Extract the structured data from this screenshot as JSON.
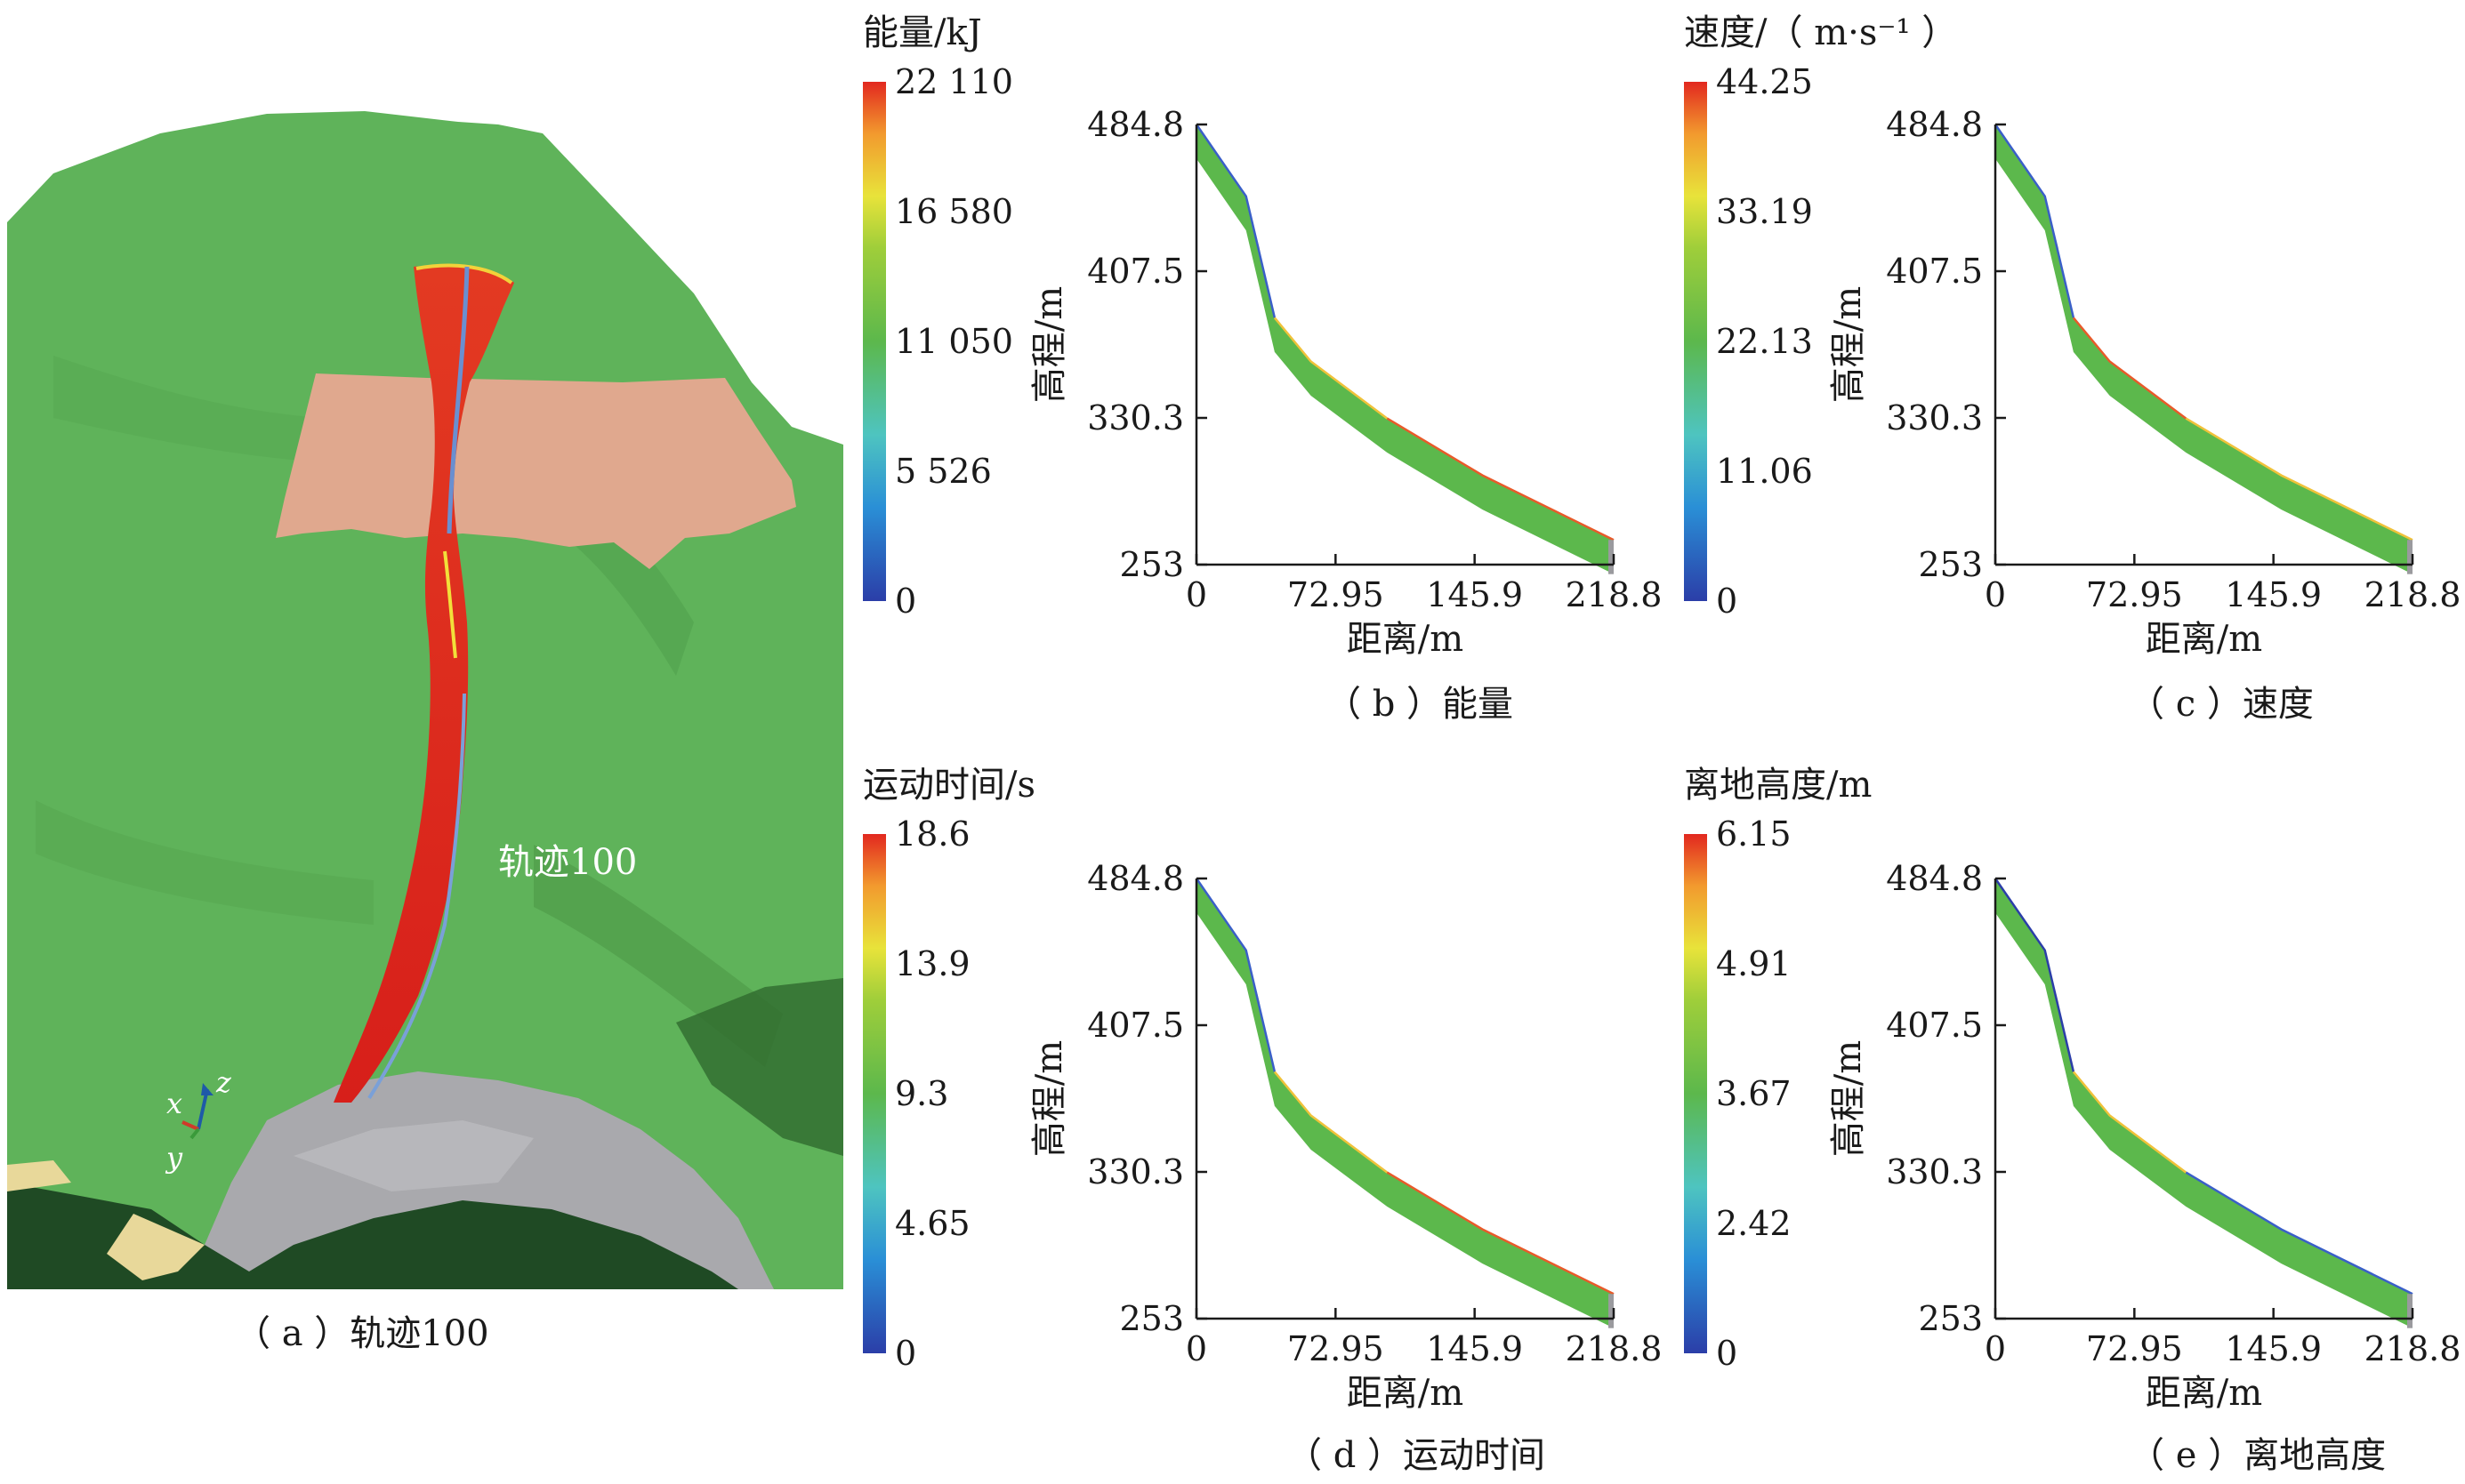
{
  "panels": {
    "a": {
      "caption": "（ a ）轨迹100",
      "trajectory_label": "轨迹100",
      "axes_labels": {
        "x": "x",
        "y": "y",
        "z": "z"
      },
      "colorbar": {
        "title": "能量/kJ",
        "ticks": [
          "22 110",
          "16 580",
          "11 050",
          "5 526",
          "0"
        ]
      }
    },
    "b": {
      "caption": "（ b ）能量"
    },
    "c": {
      "caption": "（ c ）速度"
    },
    "d": {
      "caption": "（ d ）运动时间"
    },
    "e": {
      "caption": "（ e ）离地高度"
    },
    "colorbar_speed": {
      "title": "速度/（ m·s⁻¹ ）",
      "ticks": [
        "44.25",
        "33.19",
        "22.13",
        "11.06",
        "0"
      ]
    },
    "colorbar_time": {
      "title": "运动时间/s",
      "ticks": [
        "18.6",
        "13.9",
        "9.3",
        "4.65",
        "0"
      ]
    },
    "colorbar_height": {
      "title": "离地高度/m",
      "ticks": [
        "6.15",
        "4.91",
        "3.67",
        "2.42",
        "0"
      ]
    }
  },
  "colors": {
    "terrain_green": "#5fb35a",
    "sliding_zone": "#e0a88e",
    "deposit_gray": "#a9a9ad",
    "trajectory_red": "#e0281e"
  },
  "chart_data": [
    {
      "type": "area",
      "panel": "b",
      "xlabel": "距离/m",
      "ylabel": "高程/m",
      "xlim": [
        0,
        218.8
      ],
      "ylim": [
        253,
        484.8
      ],
      "xticks": [
        "0",
        "72.95",
        "145.9",
        "218.8"
      ],
      "yticks": [
        "253",
        "330.3",
        "407.5",
        "484.8"
      ],
      "profile": {
        "x": [
          0,
          26,
          41,
          60,
          100,
          150,
          218.8
        ],
        "y": [
          484.8,
          447,
          383,
          360,
          330,
          300,
          266
        ]
      }
    },
    {
      "type": "area",
      "panel": "c",
      "xlabel": "距离/m",
      "ylabel": "高程/m",
      "xlim": [
        0,
        218.8
      ],
      "ylim": [
        253,
        484.8
      ],
      "xticks": [
        "0",
        "72.95",
        "145.9",
        "218.8"
      ],
      "yticks": [
        "253",
        "330.3",
        "407.5",
        "484.8"
      ],
      "profile": {
        "x": [
          0,
          26,
          41,
          60,
          100,
          150,
          218.8
        ],
        "y": [
          484.8,
          447,
          383,
          360,
          330,
          300,
          266
        ]
      }
    },
    {
      "type": "area",
      "panel": "d",
      "xlabel": "距离/m",
      "ylabel": "高程/m",
      "xlim": [
        0,
        218.8
      ],
      "ylim": [
        253,
        484.8
      ],
      "xticks": [
        "0",
        "72.95",
        "145.9",
        "218.8"
      ],
      "yticks": [
        "253",
        "330.3",
        "407.5",
        "484.8"
      ],
      "profile": {
        "x": [
          0,
          26,
          41,
          60,
          100,
          150,
          218.8
        ],
        "y": [
          484.8,
          447,
          383,
          360,
          330,
          300,
          266
        ]
      }
    },
    {
      "type": "area",
      "panel": "e",
      "xlabel": "距离/m",
      "ylabel": "高程/m",
      "xlim": [
        0,
        218.8
      ],
      "ylim": [
        253,
        484.8
      ],
      "xticks": [
        "0",
        "72.95",
        "145.9",
        "218.8"
      ],
      "yticks": [
        "253",
        "330.3",
        "407.5",
        "484.8"
      ],
      "profile": {
        "x": [
          0,
          26,
          41,
          60,
          100,
          150,
          218.8
        ],
        "y": [
          484.8,
          447,
          383,
          360,
          330,
          300,
          266
        ]
      }
    }
  ]
}
